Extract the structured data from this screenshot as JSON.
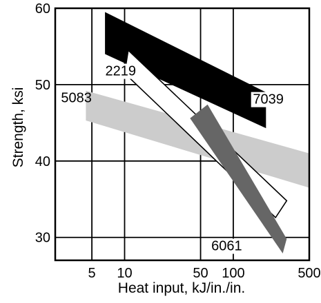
{
  "chart_data": {
    "type": "area",
    "title": "",
    "xlabel": "Heat input, kJ/in./in.",
    "ylabel": "Strength, ksi",
    "x_scale": "log",
    "xlim": [
      2.3,
      500
    ],
    "ylim": [
      27,
      60
    ],
    "x_ticks": [
      5,
      10,
      50,
      100,
      500
    ],
    "y_ticks": [
      30,
      40,
      50,
      60
    ],
    "grid": true,
    "series": [
      {
        "name": "7039",
        "color": "#000000",
        "polygon": [
          [
            6.6,
            59.5
          ],
          [
            200,
            49
          ],
          [
            200,
            44.3
          ],
          [
            6.6,
            54
          ]
        ],
        "label_anchor": [
          210,
          47.5
        ]
      },
      {
        "name": "5083",
        "color": "#cccccc",
        "polygon": [
          [
            4.4,
            49.2
          ],
          [
            500,
            41
          ],
          [
            500,
            36.5
          ],
          [
            4.4,
            45.3
          ]
        ],
        "label_anchor": [
          3.6,
          47.7
        ]
      },
      {
        "name": "2219",
        "color": "#ffffff",
        "polygon": [
          [
            10,
            51.5
          ],
          [
            10.8,
            54.5
          ],
          [
            310,
            34.8
          ],
          [
            245,
            32.6
          ]
        ],
        "label_anchor": [
          9.2,
          51.2
        ]
      },
      {
        "name": "6061",
        "color": "#666666",
        "polygon": [
          [
            40,
            45.6
          ],
          [
            58,
            47.4
          ],
          [
            310,
            29.8
          ],
          [
            285,
            27.9
          ]
        ],
        "label_anchor": [
          87,
          28.3
        ]
      }
    ]
  }
}
